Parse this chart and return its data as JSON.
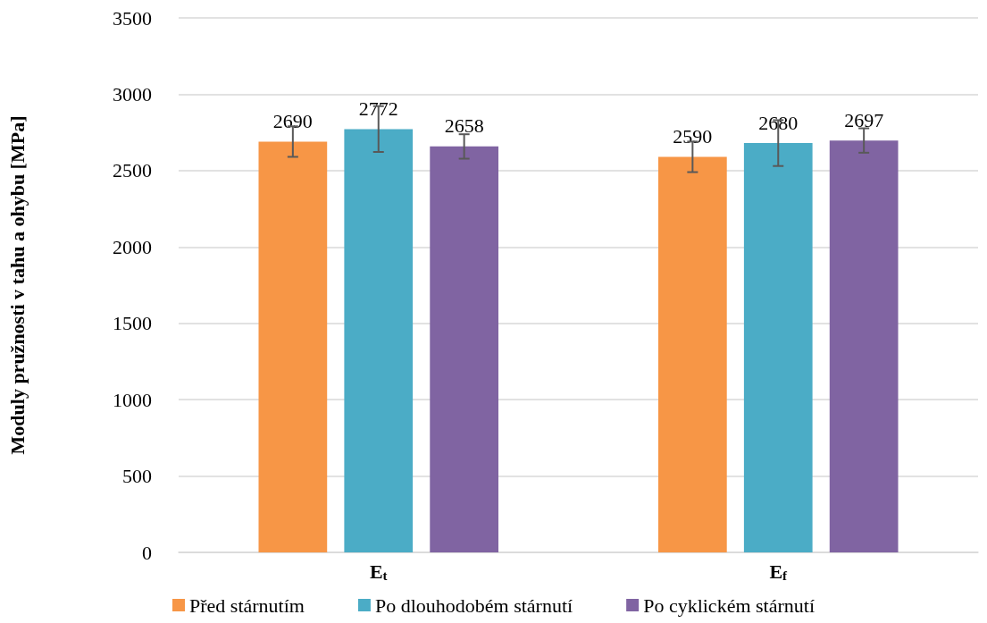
{
  "chart_data": {
    "type": "bar",
    "ylabel": "Moduly pružnosti v tahu a ohybu [MPa]",
    "categories": [
      "E$_{t}$",
      "E$_{f}$"
    ],
    "series": [
      {
        "name": "Před stárnutím",
        "color": "#f79646",
        "values": [
          2690,
          2590
        ],
        "errors": [
          100,
          100
        ]
      },
      {
        "name": "Po dlouhodobém stárnutí",
        "color": "#4bacc6",
        "values": [
          2772,
          2680
        ],
        "errors": [
          150,
          150
        ]
      },
      {
        "name": "Po cyklickém stárnutí",
        "color": "#8064a2",
        "values": [
          2658,
          2697
        ],
        "errors": [
          80,
          80
        ]
      }
    ],
    "ylim": [
      0,
      3500
    ],
    "yticks": [
      0,
      500,
      1000,
      1500,
      2000,
      2500,
      3000,
      3500
    ],
    "grid": "y",
    "legend": "bottom",
    "data_labels": true
  }
}
